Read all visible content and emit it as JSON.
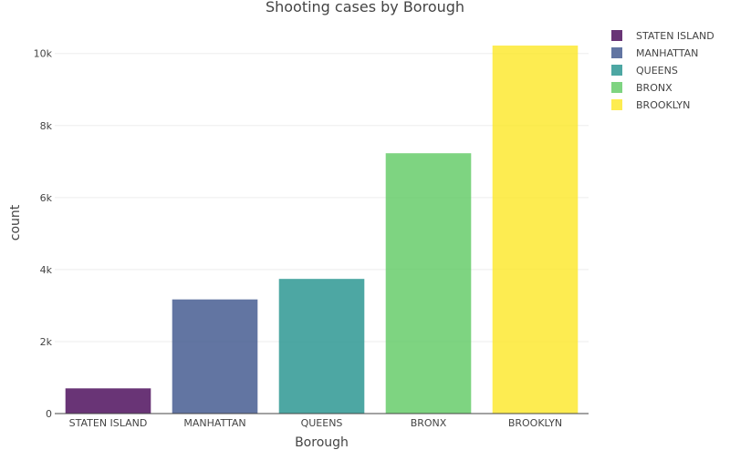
{
  "chart_data": {
    "type": "bar",
    "title": "Shooting cases by Borough",
    "xlabel": "Borough",
    "ylabel": "count",
    "categories": [
      "STATEN ISLAND",
      "MANHATTAN",
      "QUEENS",
      "BRONX",
      "BROOKLYN"
    ],
    "values": [
      700,
      3170,
      3740,
      7230,
      10220
    ],
    "colors": [
      "#440154",
      "#3b528b",
      "#21918c",
      "#5ec962",
      "#fde725"
    ],
    "ylim": [
      0,
      10600
    ],
    "yticks": [
      0,
      2000,
      4000,
      6000,
      8000,
      10000
    ],
    "ytick_labels": [
      "0",
      "2k",
      "4k",
      "6k",
      "8k",
      "10k"
    ],
    "grid": true,
    "legend": {
      "position": "top-right",
      "entries": [
        "STATEN ISLAND",
        "MANHATTAN",
        "QUEENS",
        "BRONX",
        "BROOKLYN"
      ]
    }
  }
}
